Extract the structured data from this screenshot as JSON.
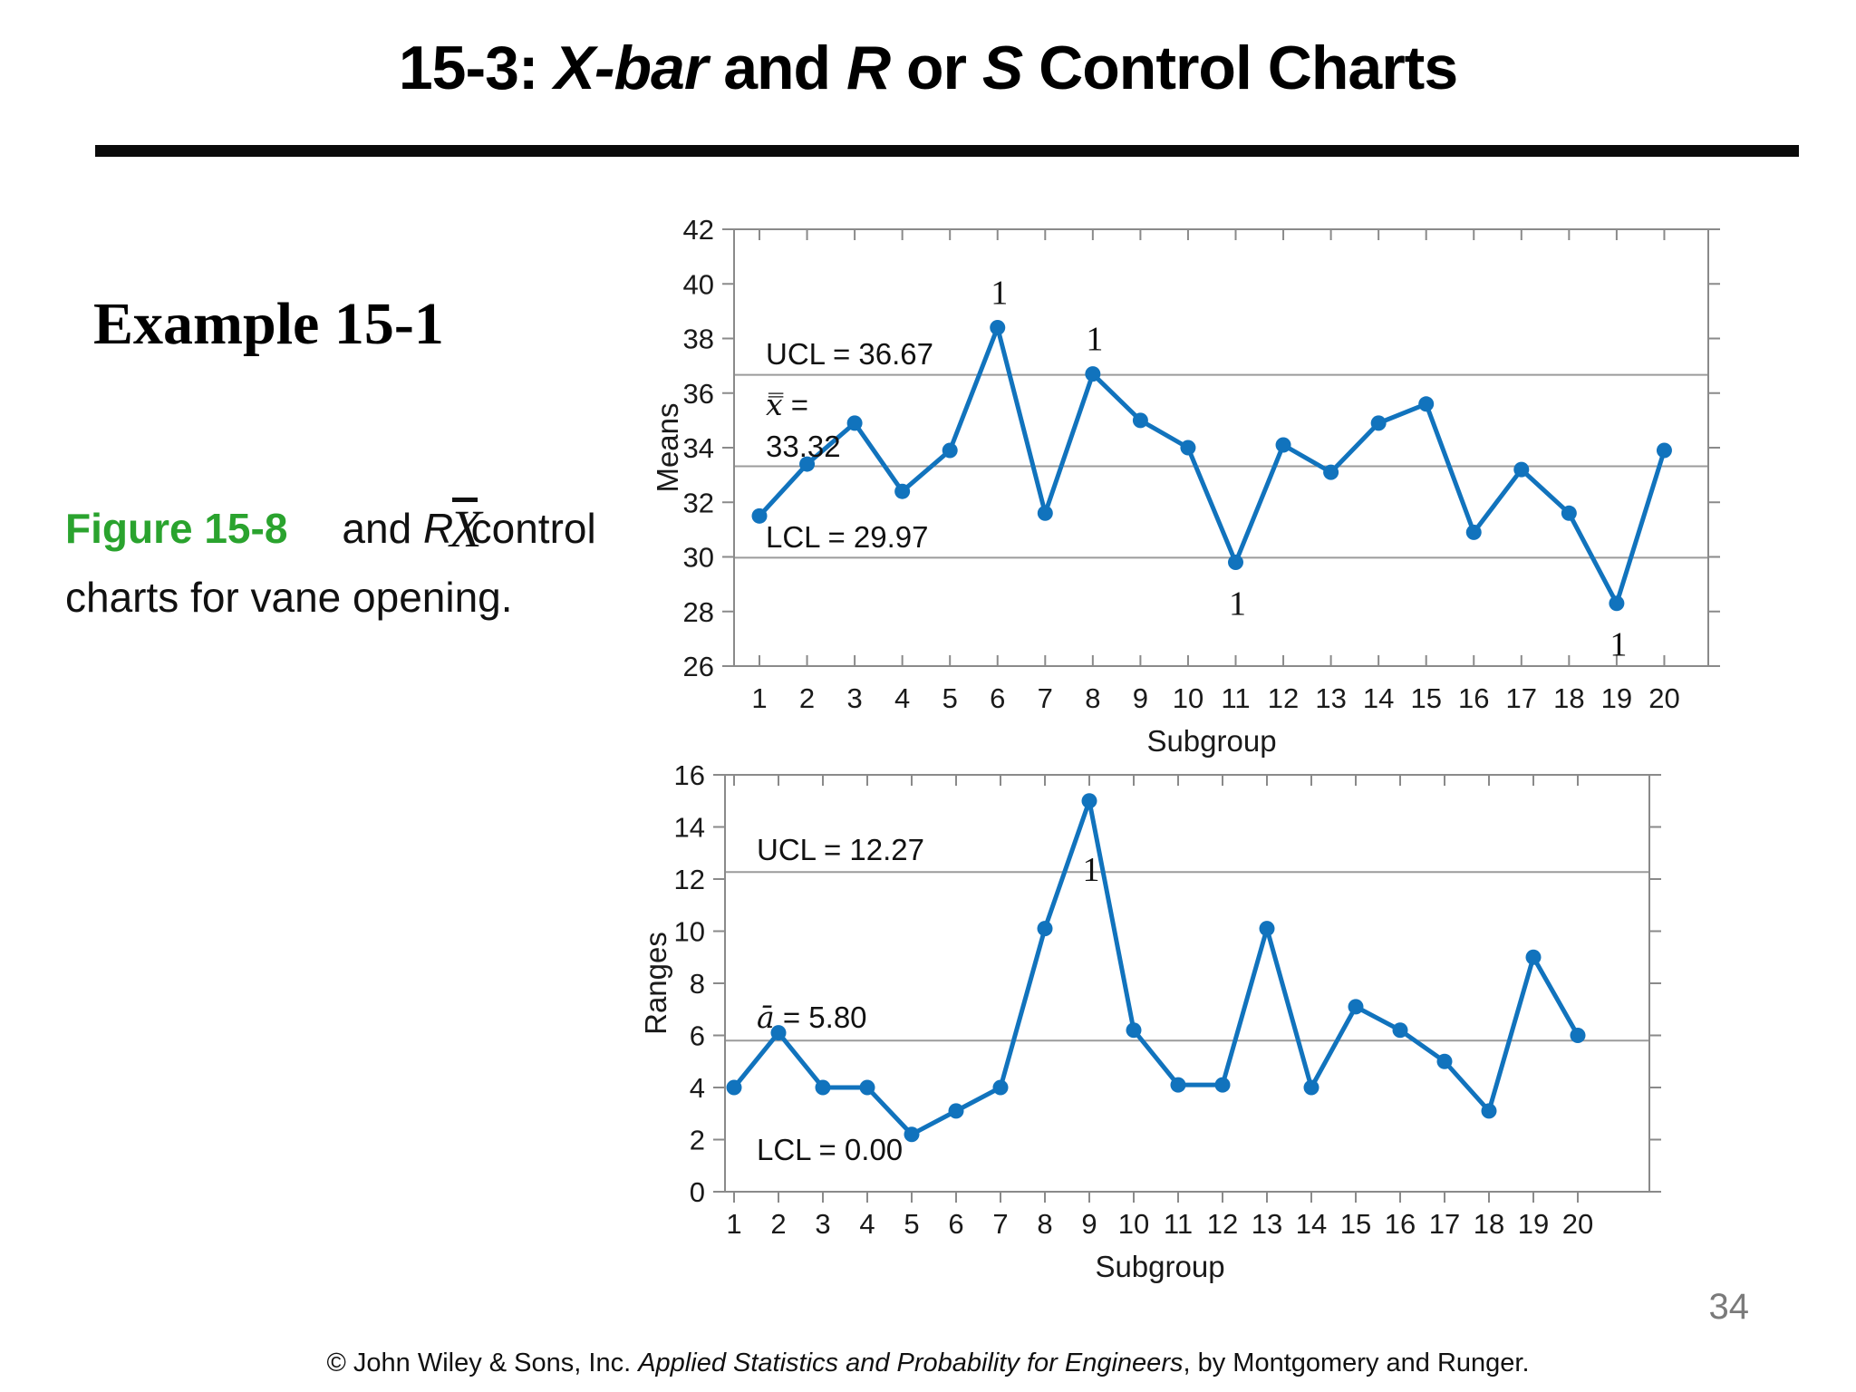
{
  "slide": {
    "title": {
      "t1": "15-3: ",
      "t2": "X-bar",
      "t3": " and ",
      "t4": "R",
      "t5": " or ",
      "t6": "S",
      "t7": " Control Charts"
    },
    "example_heading": "Example 15-1",
    "caption": {
      "figure_label": "Figure 15-8",
      "and_text": "and ",
      "r_symbol": "R",
      "xbar_symbol": "X",
      "control_word": "control",
      "line2": "charts for vane opening."
    },
    "footer": {
      "copyright": "© John Wiley & Sons, Inc.  ",
      "book_title": "Applied Statistics and Probability for Engineers",
      "authors": ", by Montgomery and Runger."
    },
    "page_number": "34"
  },
  "colors": {
    "line_blue": "#1173bd",
    "grid_gray": "#9b9b9b",
    "border_gray": "#8a8a8a",
    "figure_green": "#2aa32e",
    "page_number_gray": "#7a7a7a"
  },
  "chart_data": [
    {
      "type": "line",
      "name": "xbar-control-chart",
      "xlabel": "Subgroup",
      "ylabel": "Means",
      "x": [
        1,
        2,
        3,
        4,
        5,
        6,
        7,
        8,
        9,
        10,
        11,
        12,
        13,
        14,
        15,
        16,
        17,
        18,
        19,
        20
      ],
      "values": [
        31.5,
        33.4,
        34.9,
        32.4,
        33.9,
        38.4,
        31.6,
        36.7,
        35.0,
        34.0,
        29.8,
        34.1,
        33.1,
        34.9,
        35.6,
        30.9,
        33.2,
        31.6,
        28.3,
        33.9
      ],
      "ylim": [
        26,
        42
      ],
      "ytick_step": 2,
      "grid": "control-lines-only",
      "control_lines": {
        "ucl": 36.67,
        "center": 33.32,
        "lcl": 29.97
      },
      "labels": {
        "ucl": "UCL = 36.67",
        "center_lines": [
          {
            "lead_italic": "x̿",
            "rest": " ="
          },
          {
            "lead_italic": "",
            "rest": "33.32"
          }
        ],
        "lcl": "LCL = 29.97"
      },
      "flags": [
        {
          "subgroup": 6,
          "label": "1",
          "placement": "above"
        },
        {
          "subgroup": 8,
          "label": "1",
          "placement": "above"
        },
        {
          "subgroup": 11,
          "label": "1",
          "placement": "below"
        },
        {
          "subgroup": 19,
          "label": "1",
          "placement": "below"
        }
      ]
    },
    {
      "type": "line",
      "name": "r-control-chart",
      "xlabel": "Subgroup",
      "ylabel": "Ranges",
      "x": [
        1,
        2,
        3,
        4,
        5,
        6,
        7,
        8,
        9,
        10,
        11,
        12,
        13,
        14,
        15,
        16,
        17,
        18,
        19,
        20
      ],
      "values": [
        4.0,
        6.1,
        4.0,
        4.0,
        2.2,
        3.1,
        4.0,
        10.1,
        15.0,
        6.2,
        4.1,
        4.1,
        10.1,
        4.0,
        7.1,
        6.2,
        5.0,
        3.1,
        9.0,
        6.0
      ],
      "ylim": [
        0,
        16
      ],
      "ytick_step": 2,
      "grid": "control-lines-only",
      "control_lines": {
        "ucl": 12.27,
        "center": 5.8,
        "lcl": 0.0
      },
      "labels": {
        "ucl": "UCL = 12.27",
        "center_lines": [
          {
            "lead_italic": "ā",
            "rest": " = 5.80"
          }
        ],
        "lcl": "LCL = 0.00"
      },
      "flags": [
        {
          "subgroup": 9,
          "label": "1",
          "placement": "below-far"
        }
      ]
    }
  ]
}
